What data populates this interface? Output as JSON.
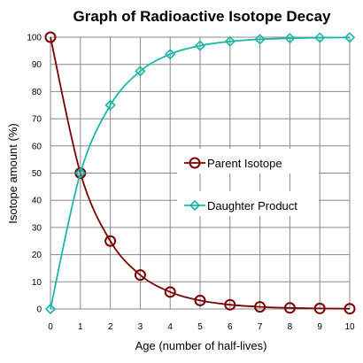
{
  "chart_data": {
    "type": "line",
    "title": "Graph of Radioactive Isotope Decay",
    "xlabel": "Age  (number of half-lives)",
    "ylabel": "Isotope  amount  (%)",
    "xlim": [
      0,
      10
    ],
    "ylim": [
      0,
      100
    ],
    "x_ticks": [
      0,
      1,
      2,
      3,
      4,
      5,
      6,
      7,
      8,
      9,
      10
    ],
    "y_ticks": [
      0,
      10,
      20,
      30,
      40,
      50,
      60,
      70,
      80,
      90,
      100
    ],
    "grid": true,
    "legend_position": "center-right",
    "series": [
      {
        "name": "Parent Isotope",
        "color": "#7b0000",
        "marker": "circle",
        "x": [
          0,
          1,
          2,
          3,
          4,
          5,
          6,
          7,
          8,
          9,
          10
        ],
        "y": [
          100,
          50,
          25,
          12.5,
          6.25,
          3.125,
          1.5625,
          0.78,
          0.39,
          0.2,
          0.1
        ]
      },
      {
        "name": "Daughter Product",
        "color": "#1ab8a8",
        "marker": "diamond",
        "x": [
          0,
          1,
          2,
          3,
          4,
          5,
          6,
          7,
          8,
          9,
          10
        ],
        "y": [
          0,
          50,
          75,
          87.5,
          93.75,
          96.875,
          98.4375,
          99.22,
          99.61,
          99.8,
          99.9
        ]
      }
    ]
  }
}
